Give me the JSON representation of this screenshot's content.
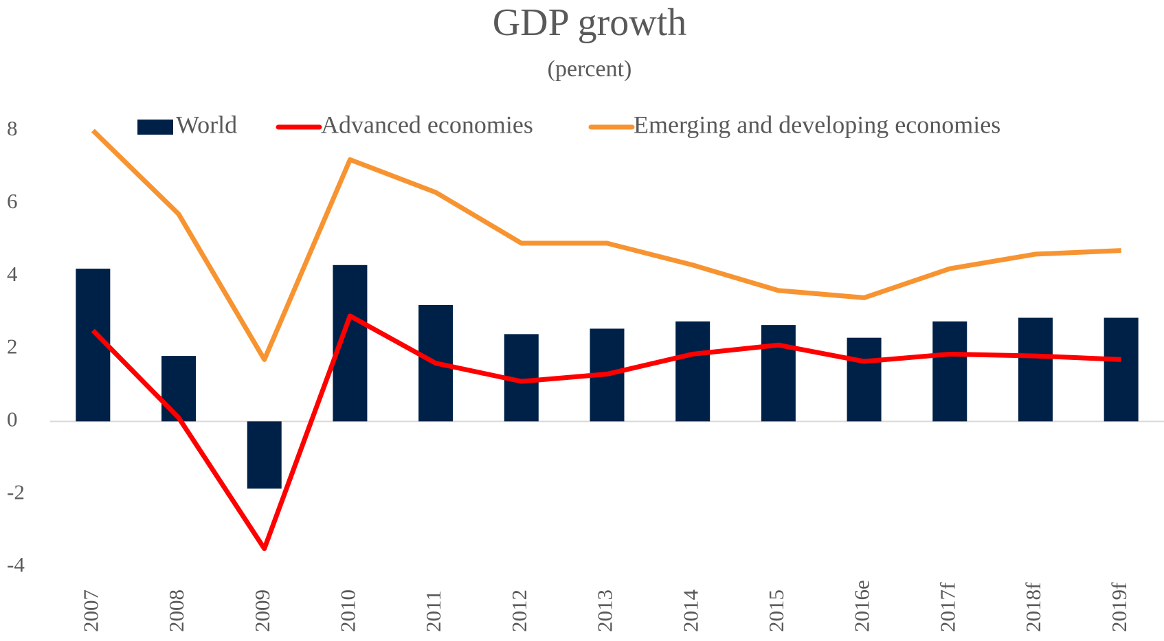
{
  "chart_data": {
    "type": "bar-line",
    "title": "GDP growth",
    "subtitle": "(percent)",
    "categories": [
      "2007",
      "2008",
      "2009",
      "2010",
      "2011",
      "2012",
      "2013",
      "2014",
      "2015",
      "2016e",
      "2017f",
      "2018f",
      "2019f"
    ],
    "series": [
      {
        "name": "World",
        "type": "bar",
        "color": "#002147",
        "values": [
          4.2,
          1.8,
          -1.85,
          4.3,
          3.2,
          2.4,
          2.55,
          2.75,
          2.65,
          2.3,
          2.75,
          2.85,
          2.85
        ]
      },
      {
        "name": "Advanced economies",
        "type": "line",
        "color": "#ff0000",
        "values": [
          2.5,
          0.1,
          -3.5,
          2.9,
          1.6,
          1.1,
          1.3,
          1.85,
          2.1,
          1.65,
          1.85,
          1.8,
          1.7
        ]
      },
      {
        "name": "Emerging and developing economies",
        "type": "line",
        "color": "#f79431",
        "values": [
          8.0,
          5.7,
          1.7,
          7.2,
          6.3,
          4.9,
          4.9,
          4.3,
          3.6,
          3.4,
          4.2,
          4.6,
          4.7
        ]
      }
    ],
    "ylim": [
      -4,
      8
    ],
    "yticks": [
      -4,
      -2,
      0,
      2,
      4,
      6,
      8
    ],
    "legend": "top"
  }
}
